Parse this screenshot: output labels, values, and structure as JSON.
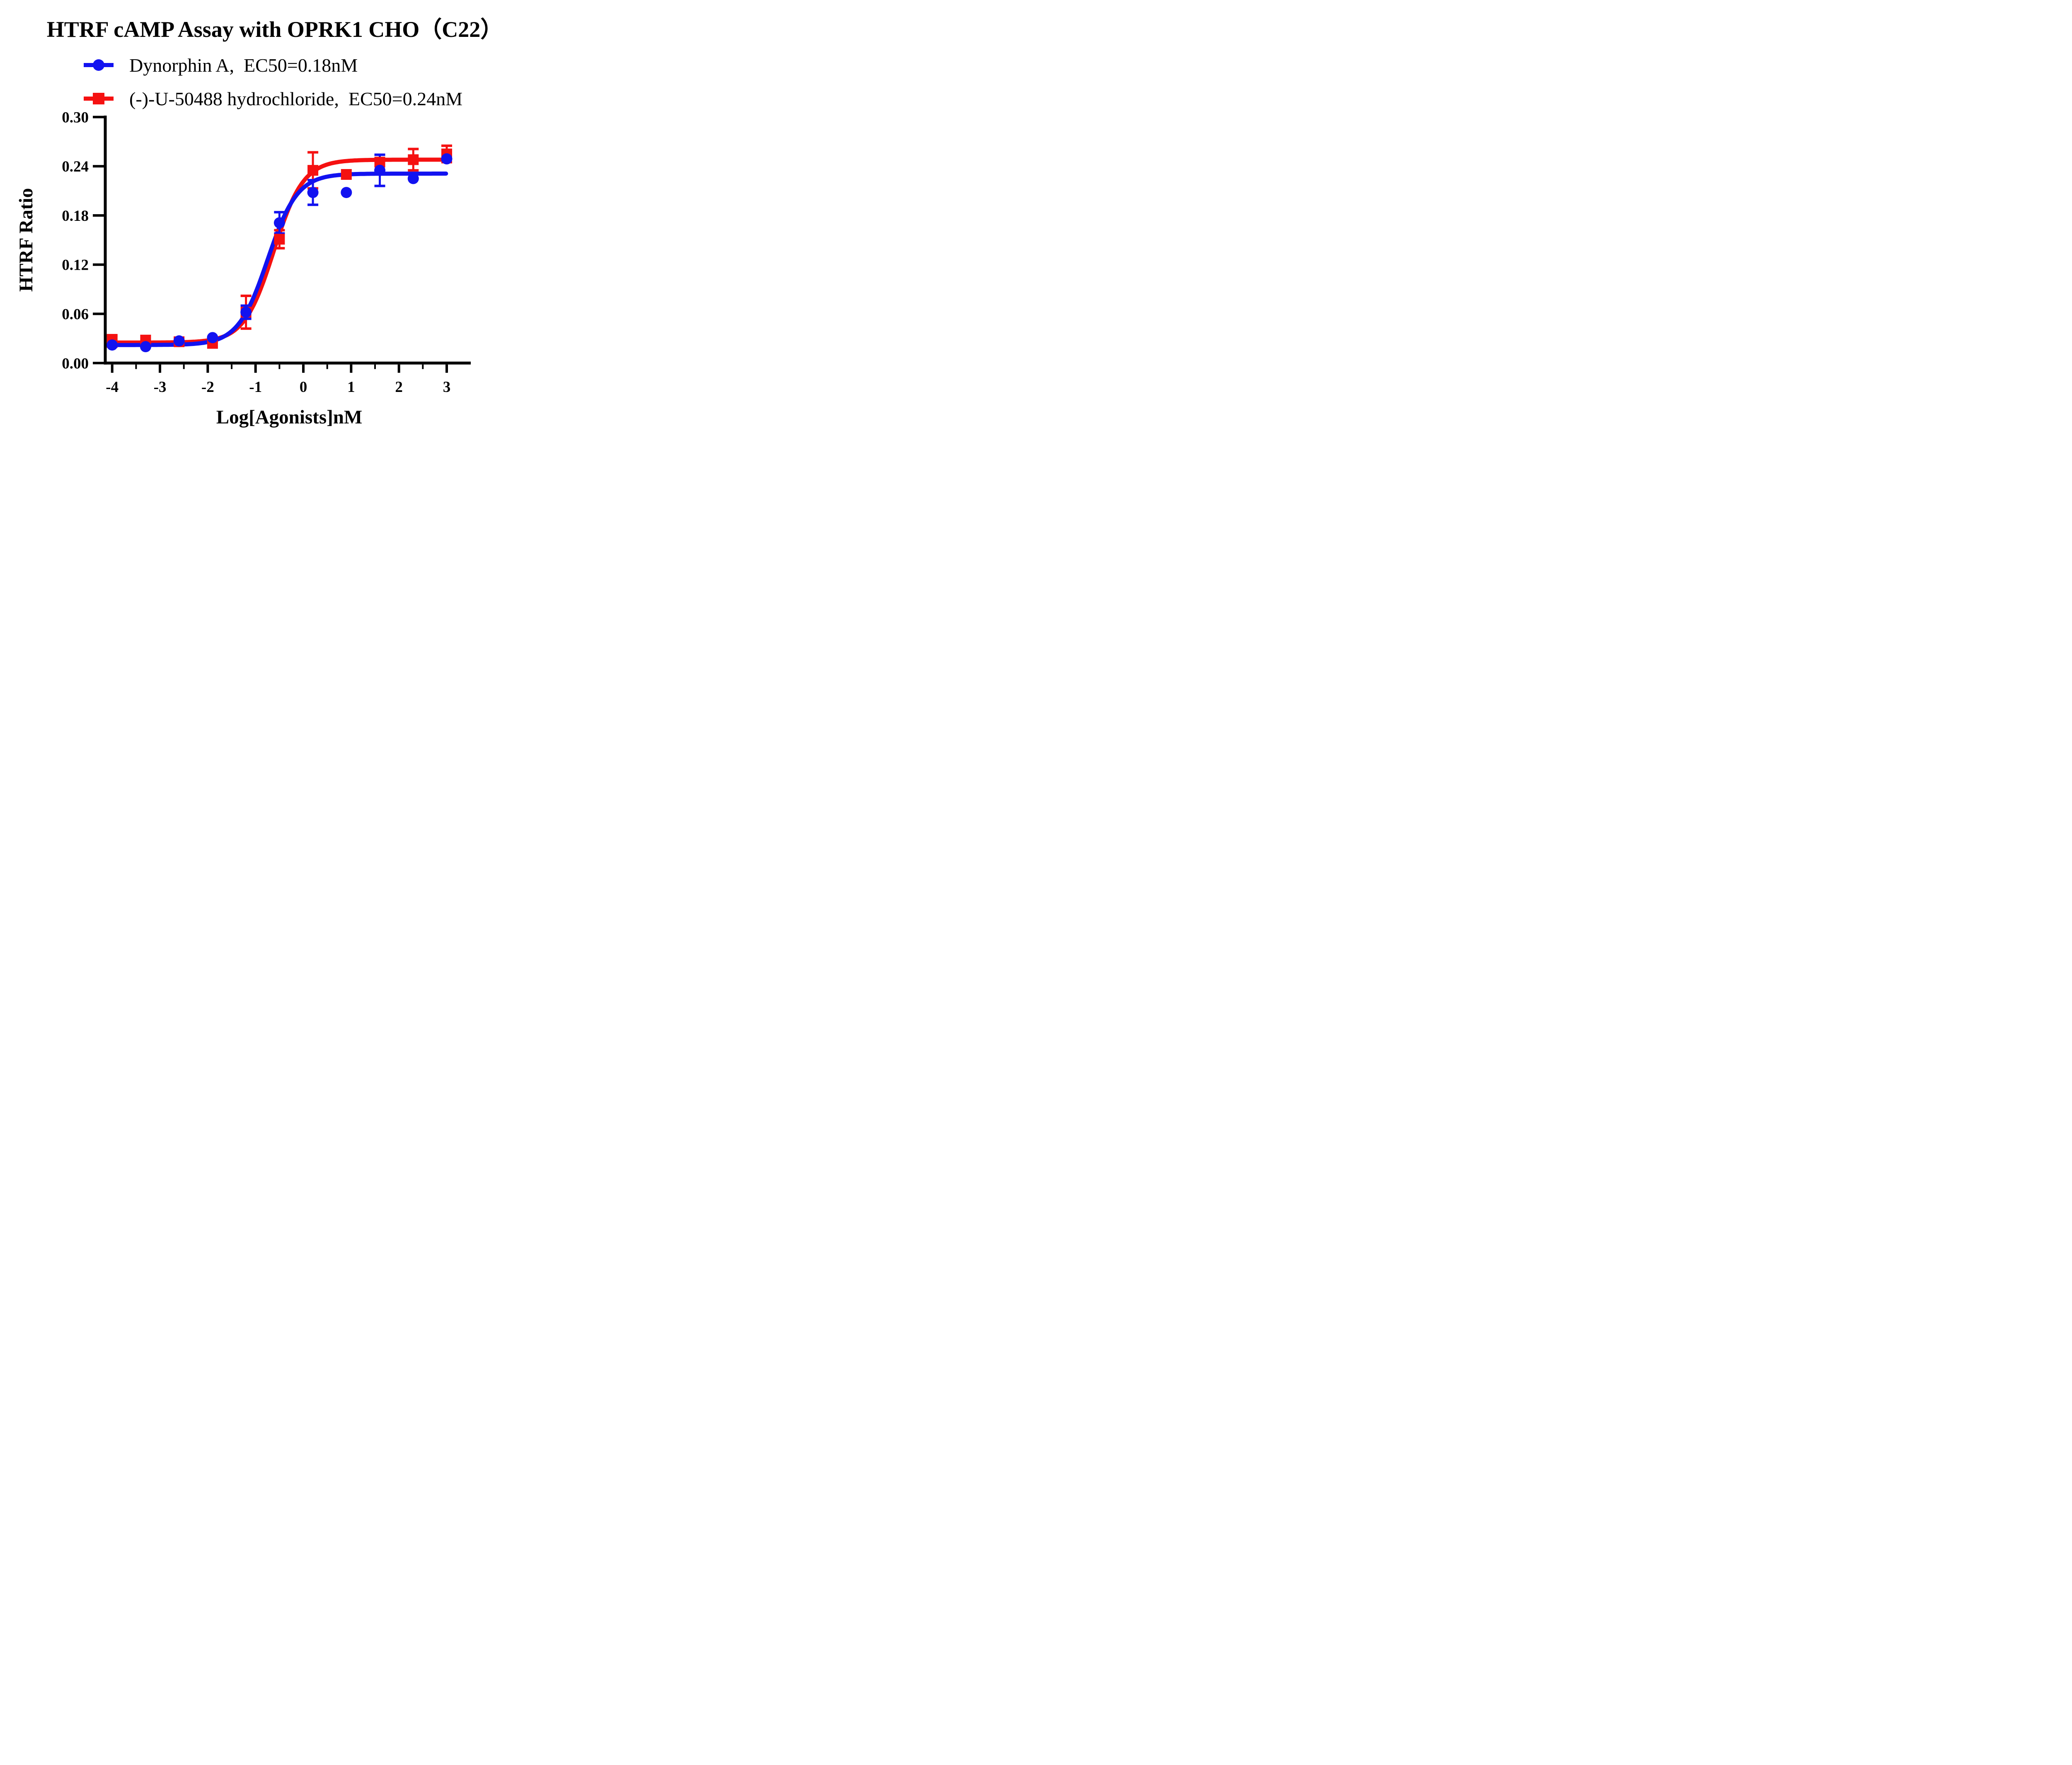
{
  "title": "HTRF cAMP Assay with OPRK1 CHO（C22）",
  "legend": {
    "items": [
      {
        "label": "Dynorphin A,  EC50=0.18nM",
        "marker": "circle",
        "color": "#1212f0"
      },
      {
        "label": "(-)-U-50488 hydrochloride,  EC50=0.24nM",
        "marker": "square",
        "color": "#f51111"
      }
    ]
  },
  "chart_data": {
    "type": "scatter",
    "subtype": "dose-response-curves-with-error-bars",
    "title": "HTRF cAMP Assay with OPRK1 CHO（C22）",
    "xlabel": "Log[Agonists]nM",
    "ylabel": "HTRF Ratio",
    "xlim": [
      -4.55,
      3.5
    ],
    "ylim": [
      0.0,
      0.3
    ],
    "grid": false,
    "x_ticks": [
      -4,
      -3,
      -2,
      -1,
      0,
      1,
      2,
      3
    ],
    "x_tick_labels": [
      "-4",
      "-3",
      "-2",
      "-1",
      "0",
      "1",
      "2",
      "3"
    ],
    "x_minor_ticks": [
      -3.5,
      -2.5,
      -1.5,
      -0.5,
      0.5,
      1.5,
      2.5
    ],
    "y_ticks": [
      0.0,
      0.06,
      0.12,
      0.18,
      0.24,
      0.3
    ],
    "y_tick_labels": [
      "0.00",
      "0.06",
      "0.12",
      "0.18",
      "0.24",
      "0.30"
    ],
    "series": [
      {
        "name": "(-)-U-50488 hydrochloride",
        "ec50_label": "EC50=0.24nM",
        "ec50_nM": 0.24,
        "color": "#f51111",
        "marker": "square",
        "x": [
          -4,
          -3.3,
          -2.6,
          -1.9,
          -1.2,
          -0.5,
          0.2,
          0.9,
          1.6,
          2.3,
          3.0
        ],
        "y": [
          0.027,
          0.028,
          0.026,
          0.024,
          0.062,
          0.151,
          0.235,
          0.23,
          0.245,
          0.248,
          0.255
        ],
        "err": [
          0.007,
          0,
          0,
          0,
          0.02,
          0.011,
          0.022,
          0,
          0,
          0.013,
          0.01
        ],
        "fit": {
          "model": "4PL",
          "bottom": 0.025,
          "top": 0.248,
          "logEC50": -0.62,
          "hill": 1.4
        }
      },
      {
        "name": "Dynorphin A",
        "ec50_label": "EC50=0.18nM",
        "ec50_nM": 0.18,
        "color": "#1212f0",
        "marker": "circle",
        "x": [
          -4,
          -3.3,
          -2.6,
          -1.9,
          -1.2,
          -0.5,
          0.2,
          0.9,
          1.6,
          2.3,
          3.0
        ],
        "y": [
          0.022,
          0.02,
          0.027,
          0.031,
          0.062,
          0.171,
          0.208,
          0.208,
          0.235,
          0.225,
          0.249
        ],
        "err": [
          0,
          0,
          0,
          0,
          0.008,
          0.013,
          0.015,
          0,
          0.019,
          0,
          0
        ],
        "fit": {
          "model": "4PL",
          "bottom": 0.022,
          "top": 0.231,
          "logEC50": -0.745,
          "hill": 1.4
        }
      }
    ],
    "curve_x_range": [
      -4.05,
      3.0
    ],
    "legend_position": "top-left"
  }
}
